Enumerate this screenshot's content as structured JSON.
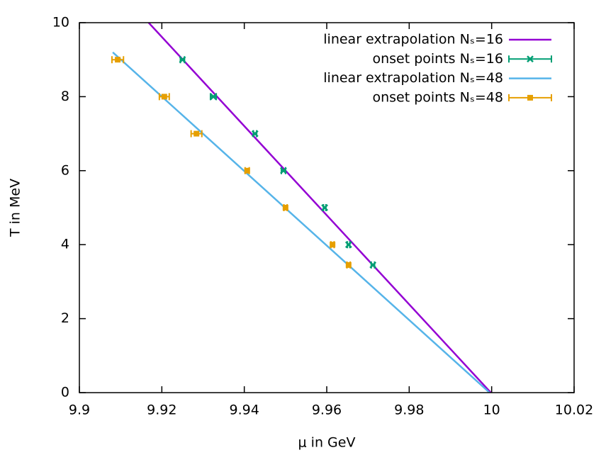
{
  "chart_data": {
    "type": "scatter",
    "x_label": "μ in GeV",
    "y_label": "T in MeV",
    "xlim": [
      9.9,
      10.02
    ],
    "xticks": [
      9.9,
      9.92,
      9.94,
      9.96,
      9.98,
      10,
      10.02
    ],
    "ylim": [
      0,
      10
    ],
    "yticks": [
      0,
      2,
      4,
      6,
      8,
      10
    ],
    "legend": "top right",
    "series": [
      {
        "name": "linear extrapolation Nₛ=16",
        "type": "line",
        "color": "#9400d3",
        "x": [
          9.9168,
          9.9998
        ],
        "values": [
          10,
          0
        ]
      },
      {
        "name": "onset points Nₛ=16",
        "type": "errorbar",
        "color": "#009e73",
        "marker": "cross",
        "x": [
          9.925,
          9.9325,
          9.9426,
          9.9495,
          9.9595,
          9.9653,
          9.9712
        ],
        "values": [
          9,
          8,
          7,
          6,
          5,
          4,
          3.45
        ],
        "xerr": [
          0.0005,
          0.0007,
          0.0004,
          0.0005,
          0.0003,
          0.0003,
          0.0004
        ]
      },
      {
        "name": "linear extrapolation Nₛ=48",
        "type": "line",
        "color": "#56b4e9",
        "x": [
          9.9081,
          9.9995
        ],
        "values": [
          9.2,
          0
        ]
      },
      {
        "name": "onset points Nₛ=48",
        "type": "errorbar",
        "color": "#e69f00",
        "marker": "square",
        "x": [
          9.9093,
          9.9206,
          9.9284,
          9.9407,
          9.95,
          9.9614,
          9.9653
        ],
        "values": [
          9,
          8,
          7,
          6,
          5,
          4,
          3.45
        ],
        "xerr": [
          0.0014,
          0.0012,
          0.0013,
          0.0005,
          0.0004,
          0.0004,
          0.0004
        ]
      }
    ]
  }
}
